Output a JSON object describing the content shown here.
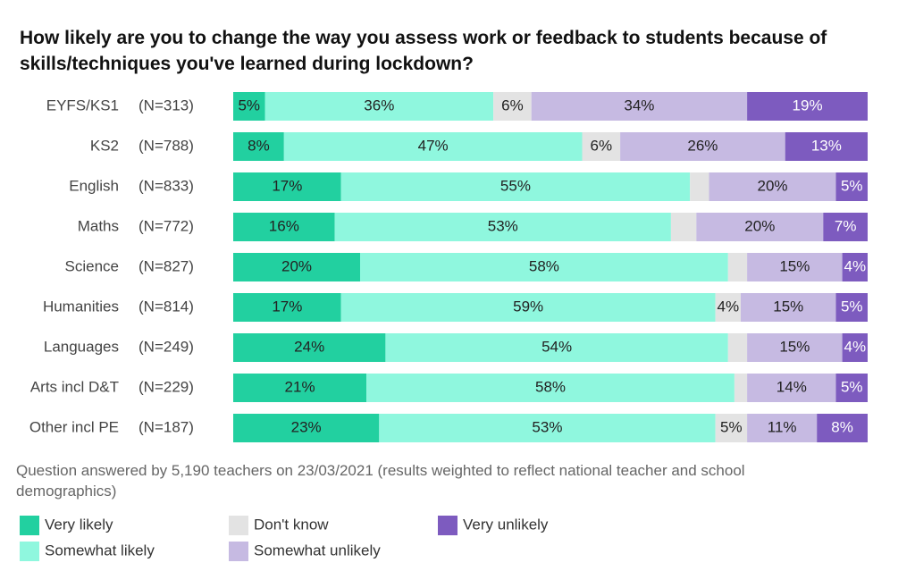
{
  "chart_data": {
    "type": "stacked-bar-horizontal",
    "title": "How likely are you to change the way you assess work or feedback to students because of skills/techniques you've learned during lockdown?",
    "note": "Question answered by 5,190 teachers on 23/03/2021 (results weighted to reflect national teacher and school demographics)",
    "categories": [
      "EYFS/KS1",
      "KS2",
      "English",
      "Maths",
      "Science",
      "Humanities",
      "Languages",
      "Arts incl D&T",
      "Other incl PE"
    ],
    "sample_sizes": [
      "(N=313)",
      "(N=788)",
      "(N=833)",
      "(N=772)",
      "(N=827)",
      "(N=814)",
      "(N=249)",
      "(N=229)",
      "(N=187)"
    ],
    "xlim": [
      0,
      100
    ],
    "series": [
      {
        "name": "Very likely",
        "color": "#22d0a0",
        "values": [
          5,
          8,
          17,
          16,
          20,
          17,
          24,
          21,
          23
        ],
        "value_labels": [
          "5%",
          "8%",
          "17%",
          "16%",
          "20%",
          "17%",
          "24%",
          "21%",
          "23%"
        ]
      },
      {
        "name": "Somewhat likely",
        "color": "#8ff7de",
        "values": [
          36,
          47,
          55,
          53,
          58,
          59,
          54,
          58,
          53
        ],
        "value_labels": [
          "36%",
          "47%",
          "55%",
          "53%",
          "58%",
          "59%",
          "54%",
          "58%",
          "53%"
        ]
      },
      {
        "name": "Don't know",
        "color": "#e3e3e3",
        "values": [
          6,
          6,
          3,
          4,
          3,
          4,
          3,
          2,
          5
        ],
        "value_labels": [
          "6%",
          "6%",
          null,
          null,
          null,
          "4%",
          null,
          null,
          "5%"
        ]
      },
      {
        "name": "Somewhat unlikely",
        "color": "#c6bae2",
        "values": [
          34,
          26,
          20,
          20,
          15,
          15,
          15,
          14,
          11
        ],
        "value_labels": [
          "34%",
          "26%",
          "20%",
          "20%",
          "15%",
          "15%",
          "15%",
          "14%",
          "11%"
        ]
      },
      {
        "name": "Very unlikely",
        "color": "#7d5bbf",
        "values": [
          19,
          13,
          5,
          7,
          4,
          5,
          4,
          5,
          8
        ],
        "value_labels": [
          "19%",
          "13%",
          "5%",
          "7%",
          "4%",
          "5%",
          "4%",
          "5%",
          "8%"
        ]
      }
    ]
  }
}
